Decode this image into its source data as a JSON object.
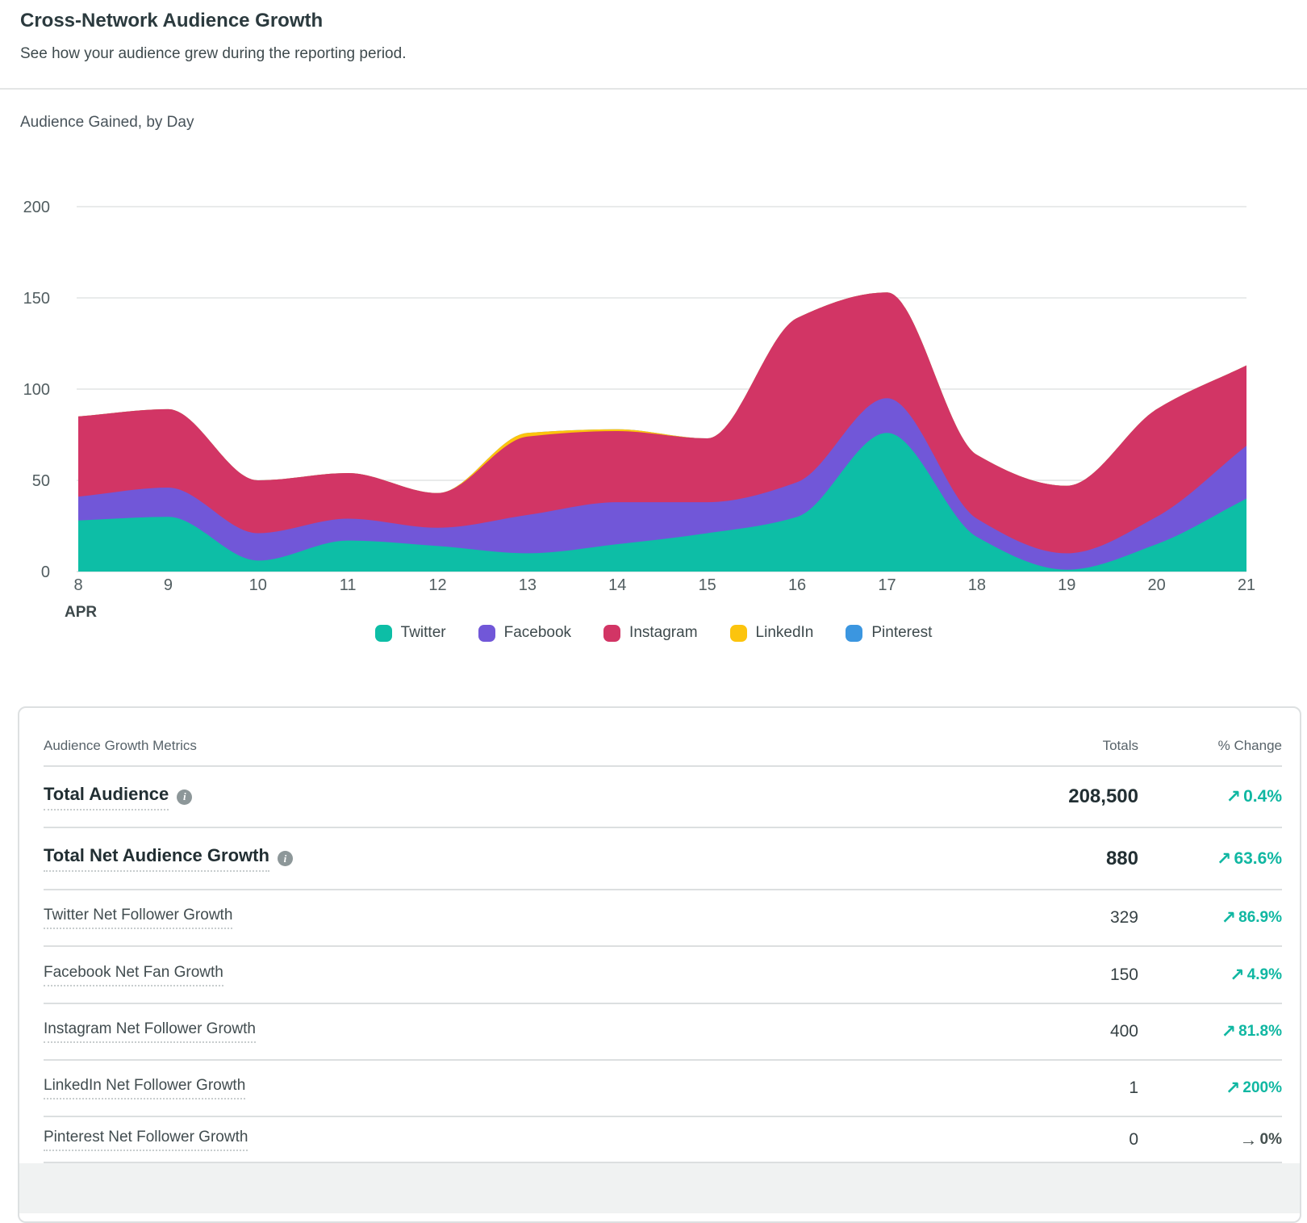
{
  "header": {
    "title": "Cross-Network Audience Growth",
    "subtitle": "See how your audience grew during the reporting period."
  },
  "chart_data": {
    "type": "area",
    "stacked": true,
    "title": "Audience Gained, by Day",
    "x": [
      8,
      9,
      10,
      11,
      12,
      13,
      14,
      15,
      16,
      17,
      18,
      19,
      20,
      21
    ],
    "month_label": "APR",
    "ylim": [
      0,
      200
    ],
    "yticks": [
      0,
      50,
      100,
      150,
      200
    ],
    "grid": true,
    "legend_position": "bottom",
    "series": [
      {
        "name": "Twitter",
        "color": "#0DBEA6",
        "values": [
          28,
          30,
          6,
          17,
          14,
          10,
          15,
          21,
          30,
          76,
          19,
          1,
          15,
          40
        ]
      },
      {
        "name": "Facebook",
        "color": "#7157D8",
        "values": [
          13,
          16,
          15,
          12,
          10,
          21,
          23,
          17,
          19,
          19,
          10,
          9,
          15,
          29
        ]
      },
      {
        "name": "Instagram",
        "color": "#D23565",
        "values": [
          44,
          43,
          29,
          25,
          19,
          43,
          39,
          35,
          90,
          58,
          35,
          37,
          59,
          44
        ]
      },
      {
        "name": "LinkedIn",
        "color": "#FCC40D",
        "values": [
          0,
          0,
          0,
          0,
          0,
          2,
          1,
          0,
          0,
          0,
          0,
          0,
          0,
          0
        ]
      },
      {
        "name": "Pinterest",
        "color": "#3B96E0",
        "values": [
          0,
          0,
          0,
          0,
          0,
          0,
          0,
          0,
          0,
          0,
          0,
          0,
          0,
          0
        ]
      }
    ]
  },
  "table": {
    "header": {
      "metric": "Audience Growth Metrics",
      "totals": "Totals",
      "change": "% Change"
    },
    "rows": [
      {
        "label": "Total Audience",
        "info": true,
        "bold": true,
        "total": "208,500",
        "change": "0.4%",
        "direction": "up"
      },
      {
        "label": "Total Net Audience Growth",
        "info": true,
        "bold": true,
        "total": "880",
        "change": "63.6%",
        "direction": "up"
      },
      {
        "label": "Twitter Net Follower Growth",
        "info": false,
        "bold": false,
        "total": "329",
        "change": "86.9%",
        "direction": "up"
      },
      {
        "label": "Facebook Net Fan Growth",
        "info": false,
        "bold": false,
        "total": "150",
        "change": "4.9%",
        "direction": "up"
      },
      {
        "label": "Instagram Net Follower Growth",
        "info": false,
        "bold": false,
        "total": "400",
        "change": "81.8%",
        "direction": "up"
      },
      {
        "label": "LinkedIn Net Follower Growth",
        "info": false,
        "bold": false,
        "total": "1",
        "change": "200%",
        "direction": "up"
      },
      {
        "label": "Pinterest Net Follower Growth",
        "info": false,
        "bold": false,
        "total": "0",
        "change": "0%",
        "direction": "flat"
      }
    ]
  },
  "icons": {
    "trend_up": "↗",
    "trend_flat": "→",
    "info": "i"
  },
  "colors": {
    "accent_teal": "#10B7A2",
    "flat_gray": "#45504F",
    "axis_text": "#515D60",
    "gridline": "#E9EBEB",
    "baseline": "#E4E6E6"
  }
}
